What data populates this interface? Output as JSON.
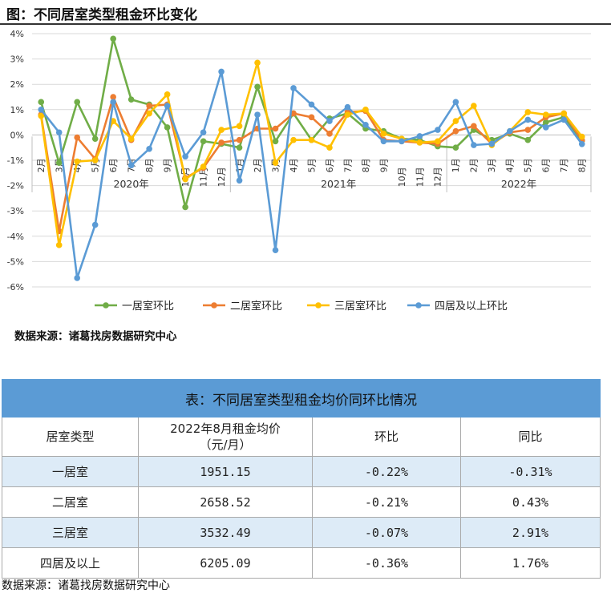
{
  "figure_title": "图：不同居室类型租金环比变化",
  "chart_source": "数据来源：诸葛找房数据研究中心",
  "chart_data": {
    "type": "line",
    "title": "",
    "x": [
      "2月",
      "3月",
      "4月",
      "5月",
      "6月",
      "7月",
      "8月",
      "9月",
      "10月",
      "11月",
      "12月",
      "1月",
      "2月",
      "3月",
      "4月",
      "5月",
      "6月",
      "7月",
      "8月",
      "9月",
      "10月",
      "11月",
      "12月",
      "1月",
      "2月",
      "3月",
      "4月",
      "5月",
      "6月",
      "7月",
      "8月"
    ],
    "year_labels": [
      {
        "label": "2020年",
        "from": 0,
        "to": 10
      },
      {
        "label": "2021年",
        "from": 11,
        "to": 22
      },
      {
        "label": "2022年",
        "from": 23,
        "to": 30
      }
    ],
    "ylim": [
      -6,
      4
    ],
    "yticks": [
      -6,
      -5,
      -4,
      -3,
      -2,
      -1,
      0,
      1,
      2,
      3,
      4
    ],
    "ytick_labels": [
      "-6%",
      "-5%",
      "-4%",
      "-3%",
      "-2%",
      "-1%",
      "0%",
      "1%",
      "2%",
      "3%",
      "4%"
    ],
    "grid": true,
    "legend_position": "bottom",
    "series": [
      {
        "name": "一居室环比",
        "color": "#70ad47",
        "values": [
          1.3,
          -1.1,
          1.3,
          -0.15,
          3.8,
          1.4,
          1.2,
          0.3,
          -2.85,
          -0.25,
          -0.35,
          -0.5,
          1.9,
          -0.25,
          0.85,
          -0.2,
          0.65,
          0.85,
          0.25,
          0.15,
          -0.15,
          -0.2,
          -0.45,
          -0.5,
          0.2,
          -0.2,
          0.05,
          -0.2,
          0.5,
          0.7,
          -0.22
        ]
      },
      {
        "name": "二居室环比",
        "color": "#ed7d31",
        "values": [
          0.8,
          -3.8,
          -0.1,
          -0.95,
          1.5,
          -0.2,
          1.15,
          1.2,
          -1.7,
          -1.3,
          -0.3,
          -0.2,
          0.25,
          0.25,
          0.85,
          0.7,
          0.05,
          0.9,
          0.95,
          -0.2,
          -0.25,
          -0.3,
          -0.35,
          0.15,
          0.35,
          -0.35,
          0.1,
          0.2,
          0.7,
          0.85,
          -0.21
        ]
      },
      {
        "name": "三居室环比",
        "color": "#ffc000",
        "values": [
          0.75,
          -4.35,
          -1.05,
          -1.0,
          0.55,
          -0.15,
          0.85,
          1.6,
          -1.75,
          -1.25,
          0.2,
          0.35,
          2.85,
          -1.1,
          -0.2,
          -0.2,
          -0.5,
          0.8,
          1.0,
          0.05,
          -0.15,
          -0.3,
          -0.25,
          0.55,
          1.15,
          -0.4,
          0.15,
          0.9,
          0.8,
          0.85,
          -0.07
        ]
      },
      {
        "name": "四居及以上环比",
        "color": "#5b9bd5",
        "values": [
          1.0,
          0.1,
          -5.65,
          -3.55,
          1.3,
          -1.2,
          -0.55,
          1.15,
          -0.85,
          0.1,
          2.5,
          -1.8,
          0.8,
          -4.55,
          1.85,
          1.2,
          0.55,
          1.1,
          0.4,
          -0.25,
          -0.25,
          -0.05,
          0.2,
          1.3,
          -0.4,
          -0.35,
          0.15,
          0.6,
          0.3,
          0.6,
          -0.36
        ]
      }
    ]
  },
  "table": {
    "caption": "表：不同居室类型租金均价同环比情况",
    "headers": [
      "居室类型",
      "2022年8月租金均价",
      "（元/月）",
      "环比",
      "同比"
    ],
    "rows": [
      {
        "type": "一居室",
        "price": "1951.15",
        "mom": "-0.22%",
        "yoy": "-0.31%"
      },
      {
        "type": "二居室",
        "price": "2658.52",
        "mom": "-0.21%",
        "yoy": "0.43%"
      },
      {
        "type": "三居室",
        "price": "3532.49",
        "mom": "-0.07%",
        "yoy": "2.91%"
      },
      {
        "type": "四居及以上",
        "price": "6205.09",
        "mom": "-0.36%",
        "yoy": "1.76%"
      }
    ]
  },
  "table_source": "数据来源：诸葛找房数据研究中心"
}
